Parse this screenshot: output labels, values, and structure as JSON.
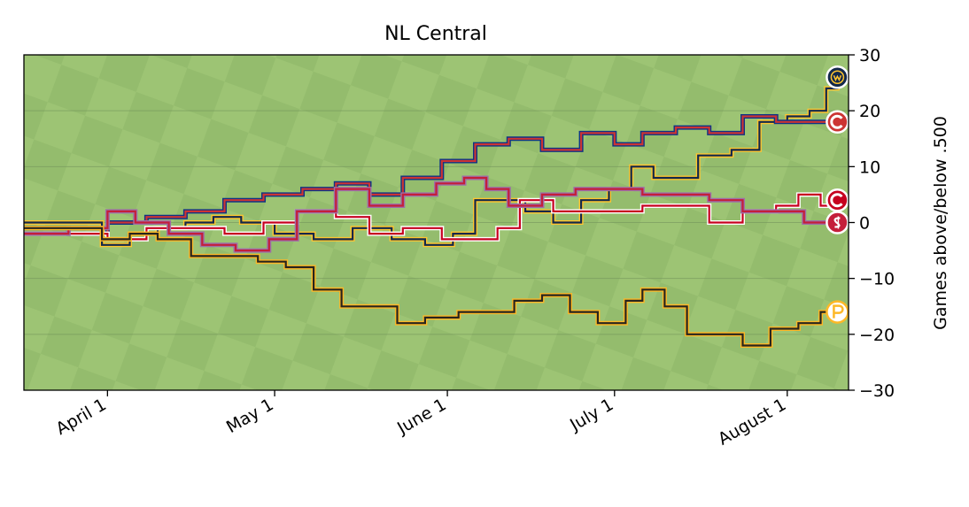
{
  "chart_data": {
    "type": "line",
    "title": "NL Central",
    "xlabel": "",
    "ylabel": "Games above/below .500",
    "ylim": [
      -30,
      30
    ],
    "x_tick_labels": [
      "April  1",
      "May  1",
      "June  1",
      "July  1",
      "August  1"
    ],
    "x_tick_dates": [
      "2023-04-01",
      "2023-05-01",
      "2023-06-01",
      "2023-07-01",
      "2023-08-01"
    ],
    "x_range": [
      "2023-03-17",
      "2023-08-12"
    ],
    "y_ticks": [
      30,
      20,
      10,
      0,
      -10,
      -20,
      -30
    ],
    "y_tick_labels": [
      "30",
      "20",
      "10",
      "0",
      "−10",
      "−20",
      "−30"
    ],
    "y_axis_side": "right",
    "grid": "horizontal",
    "background": "grass field",
    "series": [
      {
        "team_logo": "brewers-logo",
        "color": "#12284b",
        "edge": "#ffc52f",
        "points": [
          [
            "2023-03-17",
            0
          ],
          [
            "2023-03-25",
            0
          ],
          [
            "2023-03-31",
            -4
          ],
          [
            "2023-04-05",
            -2
          ],
          [
            "2023-04-10",
            -1
          ],
          [
            "2023-04-15",
            0
          ],
          [
            "2023-04-20",
            1
          ],
          [
            "2023-04-25",
            0
          ],
          [
            "2023-05-01",
            -2
          ],
          [
            "2023-05-08",
            -3
          ],
          [
            "2023-05-15",
            -1
          ],
          [
            "2023-05-22",
            -3
          ],
          [
            "2023-05-28",
            -4
          ],
          [
            "2023-06-02",
            -2
          ],
          [
            "2023-06-06",
            4
          ],
          [
            "2023-06-10",
            4
          ],
          [
            "2023-06-15",
            2
          ],
          [
            "2023-06-20",
            0
          ],
          [
            "2023-06-25",
            4
          ],
          [
            "2023-06-30",
            6
          ],
          [
            "2023-07-04",
            10
          ],
          [
            "2023-07-08",
            8
          ],
          [
            "2023-07-12",
            8
          ],
          [
            "2023-07-16",
            12
          ],
          [
            "2023-07-22",
            13
          ],
          [
            "2023-07-27",
            18
          ],
          [
            "2023-08-01",
            19
          ],
          [
            "2023-08-05",
            20
          ],
          [
            "2023-08-08",
            24
          ],
          [
            "2023-08-10",
            26
          ]
        ]
      },
      {
        "team_logo": "cubs-logo",
        "color": "#cc3433",
        "edge": "#0e3386",
        "points": [
          [
            "2023-03-17",
            -1
          ],
          [
            "2023-03-25",
            -2
          ],
          [
            "2023-04-01",
            0
          ],
          [
            "2023-04-08",
            1
          ],
          [
            "2023-04-15",
            2
          ],
          [
            "2023-04-22",
            4
          ],
          [
            "2023-04-29",
            5
          ],
          [
            "2023-05-06",
            6
          ],
          [
            "2023-05-12",
            7
          ],
          [
            "2023-05-18",
            5
          ],
          [
            "2023-05-24",
            8
          ],
          [
            "2023-05-31",
            11
          ],
          [
            "2023-06-06",
            14
          ],
          [
            "2023-06-12",
            15
          ],
          [
            "2023-06-18",
            13
          ],
          [
            "2023-06-25",
            16
          ],
          [
            "2023-07-01",
            14
          ],
          [
            "2023-07-06",
            16
          ],
          [
            "2023-07-12",
            17
          ],
          [
            "2023-07-18",
            16
          ],
          [
            "2023-07-24",
            19
          ],
          [
            "2023-07-30",
            18
          ],
          [
            "2023-08-05",
            18
          ],
          [
            "2023-08-10",
            18
          ]
        ]
      },
      {
        "team_logo": "reds-logo",
        "color": "#c6011f",
        "edge": "#ffffff",
        "points": [
          [
            "2023-03-17",
            -2
          ],
          [
            "2023-03-25",
            -2
          ],
          [
            "2023-04-01",
            -3
          ],
          [
            "2023-04-08",
            -1
          ],
          [
            "2023-04-15",
            -1
          ],
          [
            "2023-04-22",
            -2
          ],
          [
            "2023-04-29",
            0
          ],
          [
            "2023-05-05",
            2
          ],
          [
            "2023-05-12",
            1
          ],
          [
            "2023-05-18",
            -2
          ],
          [
            "2023-05-24",
            -1
          ],
          [
            "2023-05-31",
            -3
          ],
          [
            "2023-06-06",
            -3
          ],
          [
            "2023-06-10",
            -1
          ],
          [
            "2023-06-14",
            4
          ],
          [
            "2023-06-20",
            2
          ],
          [
            "2023-06-25",
            2
          ],
          [
            "2023-06-30",
            2
          ],
          [
            "2023-07-06",
            3
          ],
          [
            "2023-07-12",
            3
          ],
          [
            "2023-07-18",
            0
          ],
          [
            "2023-07-24",
            2
          ],
          [
            "2023-07-30",
            3
          ],
          [
            "2023-08-03",
            5
          ],
          [
            "2023-08-07",
            3
          ],
          [
            "2023-08-10",
            4
          ]
        ]
      },
      {
        "team_logo": "cardinals-logo",
        "color": "#c41e3a",
        "edge": "#9d6fa8",
        "points": [
          [
            "2023-03-17",
            -2
          ],
          [
            "2023-03-25",
            -1
          ],
          [
            "2023-04-01",
            2
          ],
          [
            "2023-04-06",
            0
          ],
          [
            "2023-04-12",
            -2
          ],
          [
            "2023-04-18",
            -4
          ],
          [
            "2023-04-24",
            -5
          ],
          [
            "2023-04-30",
            -3
          ],
          [
            "2023-05-05",
            2
          ],
          [
            "2023-05-12",
            6
          ],
          [
            "2023-05-18",
            3
          ],
          [
            "2023-05-24",
            5
          ],
          [
            "2023-05-30",
            7
          ],
          [
            "2023-06-04",
            8
          ],
          [
            "2023-06-08",
            6
          ],
          [
            "2023-06-12",
            3
          ],
          [
            "2023-06-18",
            5
          ],
          [
            "2023-06-24",
            6
          ],
          [
            "2023-06-30",
            6
          ],
          [
            "2023-07-06",
            5
          ],
          [
            "2023-07-12",
            5
          ],
          [
            "2023-07-18",
            4
          ],
          [
            "2023-07-24",
            2
          ],
          [
            "2023-07-30",
            2
          ],
          [
            "2023-08-04",
            0
          ],
          [
            "2023-08-10",
            0
          ]
        ]
      },
      {
        "team_logo": "pirates-logo",
        "color": "#27251f",
        "edge": "#fdb827",
        "points": [
          [
            "2023-03-17",
            -1
          ],
          [
            "2023-03-25",
            -1
          ],
          [
            "2023-03-31",
            -3
          ],
          [
            "2023-04-05",
            -2
          ],
          [
            "2023-04-10",
            -3
          ],
          [
            "2023-04-16",
            -6
          ],
          [
            "2023-04-22",
            -6
          ],
          [
            "2023-04-28",
            -7
          ],
          [
            "2023-05-03",
            -8
          ],
          [
            "2023-05-08",
            -12
          ],
          [
            "2023-05-13",
            -15
          ],
          [
            "2023-05-18",
            -15
          ],
          [
            "2023-05-23",
            -18
          ],
          [
            "2023-05-28",
            -17
          ],
          [
            "2023-06-03",
            -16
          ],
          [
            "2023-06-08",
            -16
          ],
          [
            "2023-06-13",
            -14
          ],
          [
            "2023-06-18",
            -13
          ],
          [
            "2023-06-23",
            -16
          ],
          [
            "2023-06-28",
            -18
          ],
          [
            "2023-07-03",
            -14
          ],
          [
            "2023-07-06",
            -12
          ],
          [
            "2023-07-10",
            -15
          ],
          [
            "2023-07-14",
            -20
          ],
          [
            "2023-07-19",
            -20
          ],
          [
            "2023-07-24",
            -22
          ],
          [
            "2023-07-29",
            -19
          ],
          [
            "2023-08-03",
            -18
          ],
          [
            "2023-08-07",
            -16
          ],
          [
            "2023-08-10",
            -16
          ]
        ]
      }
    ]
  }
}
